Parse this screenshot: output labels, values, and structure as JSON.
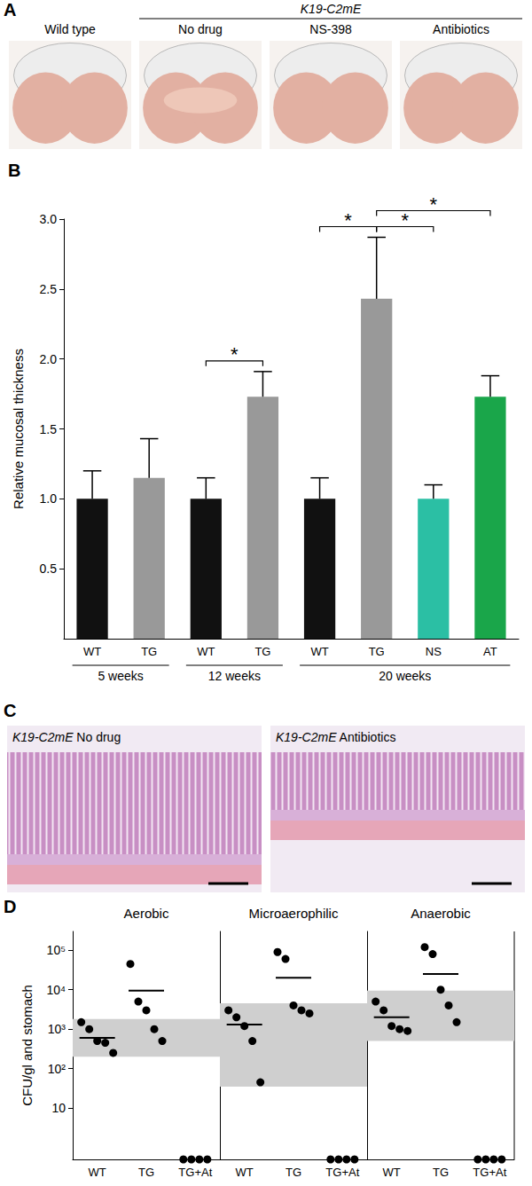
{
  "panel_a": {
    "label": "A",
    "control": "Wild type",
    "group": "K19-C2mE",
    "treatments": [
      "No drug",
      "NS-398",
      "Antibiotics"
    ]
  },
  "panel_c": {
    "label": "C",
    "images": [
      {
        "strain": "K19-C2mE",
        "condition": "No drug"
      },
      {
        "strain": "K19-C2mE",
        "condition": "Antibiotics"
      }
    ]
  },
  "chart_data": [
    {
      "type": "bar",
      "label": "B",
      "y_label": "Relative mucosal thickness",
      "categories": [
        "WT",
        "TG",
        "WT",
        "TG",
        "WT",
        "TG",
        "NS",
        "AT"
      ],
      "groups": [
        {
          "label": "5 weeks",
          "from": 0,
          "to": 1
        },
        {
          "label": "12 weeks",
          "from": 2,
          "to": 3
        },
        {
          "label": "20 weeks",
          "from": 4,
          "to": 7
        }
      ],
      "values": [
        1.0,
        1.15,
        1.0,
        1.73,
        1.0,
        2.43,
        1.0,
        1.73
      ],
      "errors": [
        0.2,
        0.28,
        0.15,
        0.18,
        0.15,
        0.44,
        0.1,
        0.15
      ],
      "colors": [
        "#111111",
        "#999999",
        "#111111",
        "#999999",
        "#111111",
        "#999999",
        "#2bbfa4",
        "#1aa64a"
      ],
      "ylim": [
        0,
        3.0
      ],
      "yticks": [
        0.5,
        {
          "value": 1,
          "label": "1.0"
        },
        1.5,
        {
          "value": 2,
          "label": "2.0"
        },
        2.5,
        {
          "value": 3,
          "label": "3.0"
        }
      ],
      "annotations": [
        {
          "label": "*",
          "from": 2,
          "to": 3
        },
        {
          "label": "*",
          "from": 4,
          "to": 5
        },
        {
          "label": "*",
          "from": 5,
          "to": 6
        },
        {
          "label": "*",
          "from": 5,
          "to": 7
        }
      ]
    },
    {
      "type": "scatter",
      "label": "D",
      "y_label": "CFU/gl and stomach",
      "log": "y",
      "marker": "circle",
      "categories": [
        "WT",
        "TG",
        "TG+At"
      ],
      "ylim": [
        0.5,
        300000
      ],
      "yticks": [
        10,
        {
          "value": 100,
          "label": "10²"
        },
        {
          "value": 1000,
          "label": "10³"
        },
        {
          "value": 10000,
          "label": "10⁴"
        },
        {
          "value": 100000,
          "label": "10⁵"
        }
      ],
      "panels": [
        {
          "title": "Aerobic",
          "points": [
            [
              1500,
              1000,
              500,
              450,
              250
            ],
            [
              45000,
              5000,
              3000,
              1000,
              500
            ],
            [
              0.5,
              0.5,
              0.5,
              0.5
            ]
          ],
          "means": [
            600,
            9500,
            null
          ],
          "band": [
            200,
            1800
          ]
        },
        {
          "title": "Microaerophilic",
          "points": [
            [
              3000,
              2000,
              1200,
              500,
              45
            ],
            [
              90000,
              60000,
              4000,
              3000,
              2500
            ],
            [
              0.5,
              0.5,
              0.5,
              0.5
            ]
          ],
          "means": [
            1300,
            20000,
            null
          ],
          "band": [
            35,
            4500
          ]
        },
        {
          "title": "Anaerobic",
          "points": [
            [
              5000,
              3000,
              1200,
              1000,
              900
            ],
            [
              120000,
              80000,
              10000,
              4000,
              1500
            ],
            [
              0.5,
              0.5,
              0.5,
              0.5
            ]
          ],
          "means": [
            2000,
            25000,
            null
          ],
          "band": [
            500,
            9500
          ]
        }
      ]
    }
  ]
}
